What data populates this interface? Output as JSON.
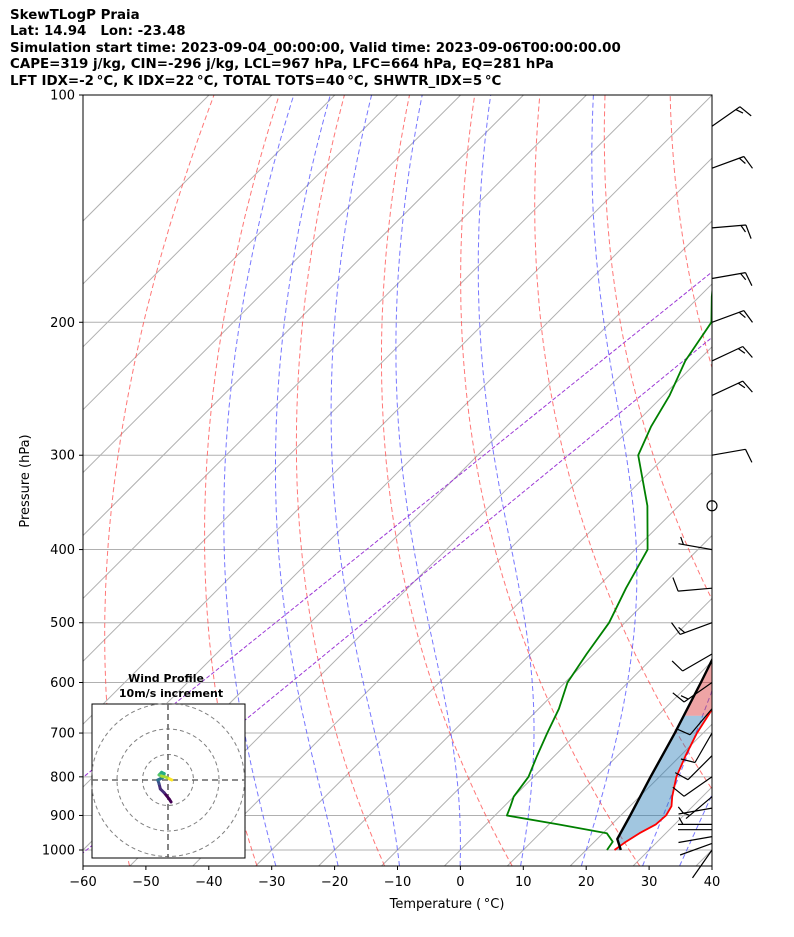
{
  "header": {
    "lines": [
      "SkewTLogP Praia",
      "Lat: 14.94   Lon: -23.48",
      "Simulation start time: 2023-09-04_00:00:00, Valid time: 2023-09-06T00:00:00.00",
      "CAPE=319 j/kg, CIN=-296 j/kg, LCL=967 hPa, LFC=664 hPa, EQ=281 hPa",
      "LFT IDX=-2 °C, K IDX=22 °C, TOTAL TOTS=40 °C, SHWTR_IDX=5 °C"
    ]
  },
  "chart_data": {
    "type": "skew-t",
    "xlabel": "Temperature ( °C)",
    "ylabel": "Pressure (hPa)",
    "xlim": [
      -60,
      40
    ],
    "ylim": [
      1050,
      100
    ],
    "y_scale": "log",
    "grid": true,
    "x_ticks": [
      -60,
      -50,
      -40,
      -30,
      -20,
      -10,
      0,
      10,
      20,
      30,
      40
    ],
    "y_ticks": [
      100,
      200,
      300,
      400,
      500,
      600,
      700,
      800,
      900,
      1000
    ],
    "temperature": [
      [
        1000,
        24.5
      ],
      [
        975,
        25.0
      ],
      [
        950,
        25.8
      ],
      [
        925,
        27.0
      ],
      [
        900,
        27.2
      ],
      [
        875,
        26.6
      ],
      [
        850,
        25.2
      ],
      [
        800,
        22.7
      ],
      [
        750,
        20.8
      ],
      [
        700,
        19.0
      ],
      [
        650,
        17.6
      ],
      [
        600,
        16.1
      ],
      [
        550,
        15.3
      ],
      [
        500,
        14.1
      ],
      [
        450,
        12.6
      ],
      [
        400,
        11.3
      ],
      [
        350,
        9.8
      ],
      [
        300,
        7.0
      ],
      [
        250,
        1.0
      ],
      [
        200,
        -7.5
      ],
      [
        175,
        -11.2
      ],
      [
        150,
        -16.2
      ],
      [
        125,
        -22.6
      ],
      [
        112,
        -23.8
      ],
      [
        100,
        -23.6
      ]
    ],
    "dewpoint": [
      [
        1000,
        23.3
      ],
      [
        975,
        22.9
      ],
      [
        950,
        20.6
      ],
      [
        925,
        11.5
      ],
      [
        900,
        1.9
      ],
      [
        875,
        1.0
      ],
      [
        850,
        0.0
      ],
      [
        800,
        -0.8
      ],
      [
        750,
        -2.8
      ],
      [
        700,
        -4.8
      ],
      [
        650,
        -6.8
      ],
      [
        600,
        -9.6
      ],
      [
        550,
        -11.1
      ],
      [
        500,
        -12.5
      ],
      [
        450,
        -15.3
      ],
      [
        400,
        -18.0
      ],
      [
        350,
        -25.0
      ],
      [
        300,
        -34.5
      ],
      [
        275,
        -37.0
      ],
      [
        250,
        -39.0
      ],
      [
        225,
        -42.0
      ],
      [
        200,
        -44.0
      ],
      [
        185,
        -48.0
      ],
      [
        170,
        -52.0
      ],
      [
        150,
        -55.0
      ],
      [
        130,
        -60.0
      ],
      [
        115,
        -62.0
      ],
      [
        100,
        -63.0
      ]
    ],
    "parcel": [
      [
        1000,
        25.5
      ],
      [
        967,
        23.2
      ],
      [
        900,
        21.5
      ],
      [
        800,
        18.6
      ],
      [
        700,
        15.5
      ],
      [
        600,
        11.6
      ],
      [
        500,
        6.8
      ],
      [
        400,
        0.0
      ],
      [
        350,
        -4.7
      ],
      [
        300,
        -10.7
      ],
      [
        281,
        -13.5
      ],
      [
        250,
        -19.0
      ],
      [
        200,
        -30.3
      ],
      [
        150,
        -46.5
      ],
      [
        125,
        -57.0
      ],
      [
        100,
        -70.0
      ]
    ],
    "cape_shading": [
      "664-281 hPa",
      "100-281 hPa"
    ],
    "cin_shading": [
      "1000-664 hPa"
    ],
    "dry_adiabats_theta_K": [
      220,
      240,
      260,
      280,
      300,
      320,
      340,
      360,
      380,
      400,
      420,
      440
    ],
    "moist_adiabats_start_C": [
      -30,
      -20,
      -10,
      0,
      10,
      20,
      30,
      36
    ],
    "wind_barbs": [
      [
        1000,
        215,
        2
      ],
      [
        980,
        250,
        3
      ],
      [
        960,
        260,
        4
      ],
      [
        940,
        270,
        4
      ],
      [
        925,
        270,
        5
      ],
      [
        880,
        260,
        6
      ],
      [
        850,
        230,
        8
      ],
      [
        800,
        235,
        10
      ],
      [
        750,
        225,
        12
      ],
      [
        700,
        210,
        12
      ],
      [
        650,
        220,
        14
      ],
      [
        600,
        235,
        16
      ],
      [
        550,
        240,
        14
      ],
      [
        500,
        250,
        16
      ],
      [
        450,
        265,
        12
      ],
      [
        400,
        280,
        8
      ],
      [
        350,
        0,
        0
      ],
      [
        300,
        80,
        11
      ],
      [
        250,
        65,
        16
      ],
      [
        225,
        65,
        18
      ],
      [
        200,
        70,
        17
      ],
      [
        175,
        80,
        18
      ],
      [
        150,
        85,
        19
      ],
      [
        125,
        70,
        16
      ],
      [
        110,
        55,
        15
      ]
    ],
    "hodograph": {
      "title": "Wind Profile",
      "subtitle": "10m/s increment",
      "ring_step": 10,
      "colormap": "viridis",
      "uv_points": [
        [
          1.2,
          -8.6
        ],
        [
          0.5,
          -7.5
        ],
        [
          -1.5,
          -5.0
        ],
        [
          -3.0,
          -3.5
        ],
        [
          -3.5,
          -1.5
        ],
        [
          -4.0,
          0.0
        ],
        [
          -3.0,
          0.5
        ],
        [
          -2.0,
          1.0
        ],
        [
          -1.5,
          2.5
        ],
        [
          -2.5,
          3.0
        ],
        [
          -3.5,
          2.0
        ],
        [
          -2.5,
          1.5
        ],
        [
          -1.0,
          1.2
        ],
        [
          0.5,
          0.5
        ],
        [
          1.5,
          0.0
        ]
      ]
    }
  }
}
